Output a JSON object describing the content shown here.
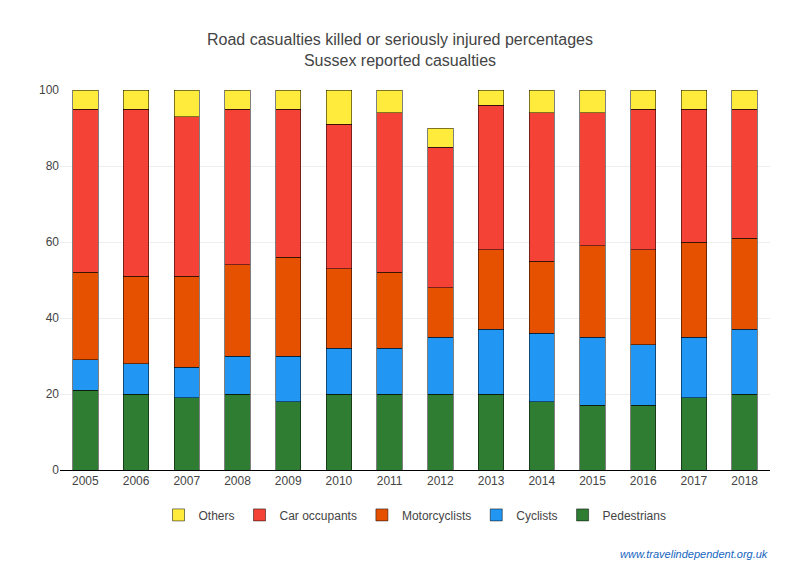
{
  "chart_data": {
    "type": "bar",
    "title": "Road casualties killed or seriously injured percentages",
    "subtitle": "Sussex reported casualties",
    "categories": [
      "2005",
      "2006",
      "2007",
      "2008",
      "2009",
      "2010",
      "2011",
      "2012",
      "2013",
      "2014",
      "2015",
      "2016",
      "2017",
      "2018"
    ],
    "series": [
      {
        "name": "Pedestrians",
        "color": "#2e7d32",
        "values": [
          21,
          20,
          19,
          20,
          18,
          20,
          20,
          20,
          20,
          18,
          17,
          17,
          19,
          20
        ]
      },
      {
        "name": "Cyclists",
        "color": "#2196f3",
        "values": [
          8,
          8,
          8,
          10,
          12,
          12,
          12,
          15,
          17,
          18,
          18,
          16,
          16,
          17
        ]
      },
      {
        "name": "Motorcyclists",
        "color": "#e65100",
        "values": [
          23,
          23,
          24,
          24,
          26,
          21,
          20,
          13,
          21,
          19,
          24,
          25,
          25,
          24
        ]
      },
      {
        "name": "Car occupants",
        "color": "#f44336",
        "values": [
          43,
          44,
          42,
          41,
          39,
          38,
          42,
          37,
          38,
          39,
          35,
          37,
          35,
          34
        ]
      },
      {
        "name": "Others",
        "color": "#ffeb3b",
        "values": [
          5,
          5,
          7,
          5,
          5,
          9,
          6,
          5,
          4,
          6,
          6,
          5,
          5,
          5
        ]
      }
    ],
    "stacked": true,
    "ylim": [
      0,
      100
    ],
    "yticks": [
      0,
      20,
      40,
      60,
      80,
      100
    ],
    "grid": true,
    "legend": "bottom",
    "annotations": [
      "www.travelindependent.org.uk"
    ]
  }
}
